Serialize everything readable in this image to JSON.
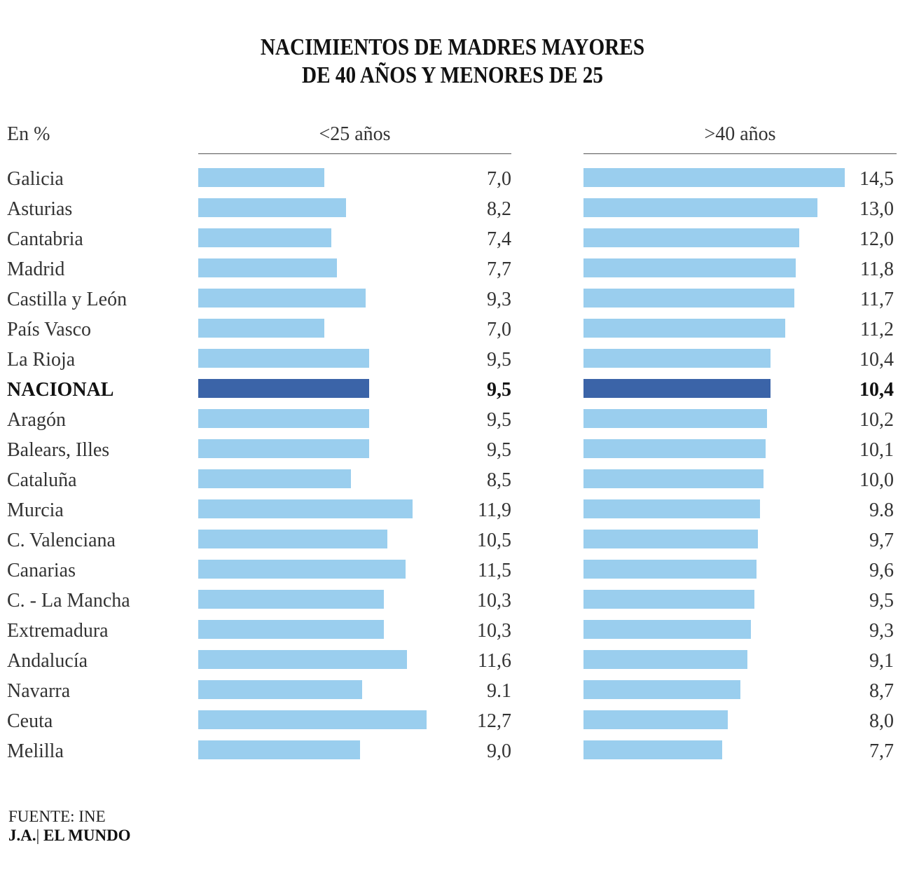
{
  "chart_data": {
    "type": "bar",
    "orientation": "horizontal",
    "title": [
      "NACIMIENTOS DE MADRES MAYORES",
      "DE 40 AÑOS Y MENORES DE 25"
    ],
    "unit_label": "En %",
    "highlight_category": "NACIONAL",
    "colors": {
      "default": "#9ACEEE",
      "highlight": "#3B64A8"
    },
    "categories": [
      "Galicia",
      "Asturias",
      "Cantabria",
      "Madrid",
      "Castilla y León",
      "País Vasco",
      "La Rioja",
      "NACIONAL",
      "Aragón",
      "Balears, Illes",
      "Cataluña",
      "Murcia",
      "C. Valenciana",
      "Canarias",
      "C. - La Mancha",
      "Extremadura",
      "Andalucía",
      "Navarra",
      "Ceuta",
      "Melilla"
    ],
    "series": [
      {
        "name": "<25 años",
        "values": [
          7.0,
          8.2,
          7.4,
          7.7,
          9.3,
          7.0,
          9.5,
          9.5,
          9.5,
          9.5,
          8.5,
          11.9,
          10.5,
          11.5,
          10.3,
          10.3,
          11.6,
          9.1,
          12.7,
          9.0
        ],
        "labels": [
          "7,0",
          "8,2",
          "7,4",
          "7,7",
          "9,3",
          "7,0",
          "9,5",
          "9,5",
          "9,5",
          "9,5",
          "8,5",
          "11,9",
          "10,5",
          "11,5",
          "10,3",
          "10,3",
          "11,6",
          "9.1",
          "12,7",
          "9,0"
        ]
      },
      {
        "name": ">40 años",
        "values": [
          14.5,
          13.0,
          12.0,
          11.8,
          11.7,
          11.2,
          10.4,
          10.4,
          10.2,
          10.1,
          10.0,
          9.8,
          9.7,
          9.6,
          9.5,
          9.3,
          9.1,
          8.7,
          8.0,
          7.7
        ],
        "labels": [
          "14,5",
          "13,0",
          "12,0",
          "11,8",
          "11,7",
          "11,2",
          "10,4",
          "10,4",
          "10,2",
          "10,1",
          "10,0",
          "9.8",
          "9,7",
          "9,6",
          "9,5",
          "9,3",
          "9,1",
          "8,7",
          "8,0",
          "7,7"
        ]
      }
    ],
    "xlim": [
      0,
      17.4
    ],
    "grid": false,
    "legend": "none"
  },
  "footer": {
    "source": "FUENTE: INE",
    "credit_author": "J.A.",
    "credit_separator": "|",
    "credit_outlet": "EL MUNDO"
  }
}
